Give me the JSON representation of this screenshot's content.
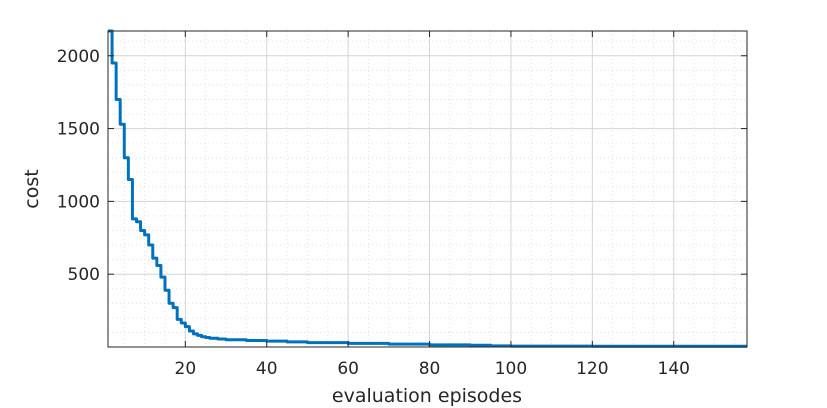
{
  "chart_data": {
    "type": "line",
    "title": "",
    "xlabel": "evaluation episodes",
    "ylabel": "cost",
    "xlim": [
      1,
      158
    ],
    "ylim": [
      0,
      2170
    ],
    "x_ticks": [
      20,
      40,
      60,
      80,
      100,
      120,
      140
    ],
    "y_ticks": [
      500,
      1000,
      1500,
      2000
    ],
    "grid": "major and minor",
    "line_color": "#0072BD",
    "series": [
      {
        "x": [
          1,
          2,
          3,
          4,
          5,
          6,
          7,
          8,
          9,
          10,
          11,
          12,
          13,
          14,
          15,
          16,
          17,
          18,
          19,
          20,
          21,
          22,
          23,
          24,
          25,
          26,
          28,
          30,
          35,
          40,
          45,
          50,
          60,
          70,
          80,
          90,
          95,
          100,
          120,
          140,
          158
        ],
        "y": [
          2170,
          1950,
          1700,
          1530,
          1300,
          1150,
          880,
          860,
          800,
          770,
          700,
          610,
          560,
          480,
          390,
          300,
          270,
          190,
          165,
          140,
          110,
          90,
          80,
          70,
          65,
          60,
          55,
          50,
          45,
          40,
          35,
          30,
          25,
          20,
          15,
          12,
          8,
          6,
          5,
          5,
          5
        ]
      }
    ]
  }
}
